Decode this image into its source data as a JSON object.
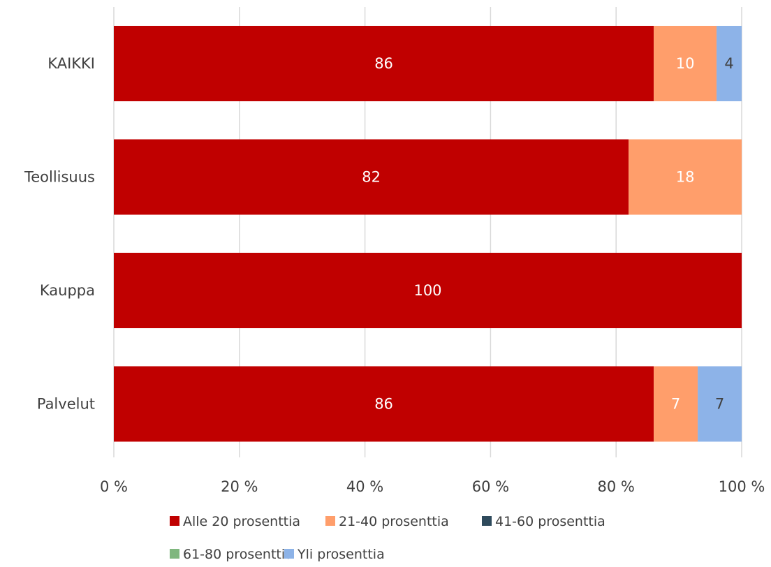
{
  "chart_data": {
    "type": "bar",
    "orientation": "horizontal",
    "stacked": true,
    "categories": [
      "KAIKKI",
      "Teollisuus",
      "Kauppa",
      "Palvelut"
    ],
    "series": [
      {
        "name": "Alle 20 prosenttia",
        "color": "#c00000",
        "label_color": "#ffffff",
        "values": [
          86,
          82,
          100,
          86
        ]
      },
      {
        "name": "21-40 prosenttia",
        "color": "#ff9e6b",
        "label_color": "#ffffff",
        "values": [
          10,
          18,
          0,
          7
        ]
      },
      {
        "name": "41-60 prosenttia",
        "color": "#2e4a5c",
        "label_color": "#ffffff",
        "values": [
          0,
          0,
          0,
          0
        ]
      },
      {
        "name": "61-80 prosenttia",
        "color": "#7fb77e",
        "label_color": "#ffffff",
        "values": [
          0,
          0,
          0,
          0
        ]
      },
      {
        "name": "Yli prosenttia",
        "color": "#8db3e8",
        "label_color": "#404040",
        "values": [
          4,
          0,
          0,
          7
        ]
      }
    ],
    "xlim": [
      0,
      100
    ],
    "xticks": [
      "0 %",
      "20 %",
      "40 %",
      "60 %",
      "80 %",
      "100 %"
    ],
    "grid": true,
    "legend_position": "bottom"
  }
}
